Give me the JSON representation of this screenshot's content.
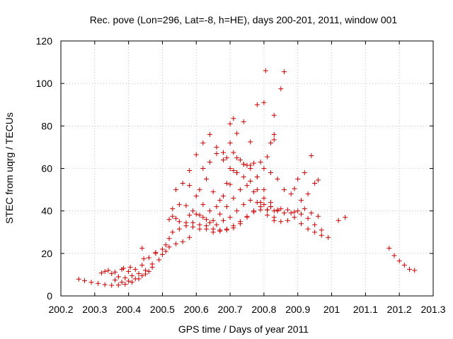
{
  "chart_data": {
    "type": "scatter",
    "title": "Rec. pove (Lon=296, Lat=-8, h=HE), days 200-201, 2011, window 001",
    "xlabel": "GPS time / Days of year 2011",
    "ylabel": "STEC from uqrg / TECUs",
    "xlim": [
      200.2,
      201.3
    ],
    "ylim": [
      0,
      120
    ],
    "x_ticks": [
      200.2,
      200.3,
      200.4,
      200.5,
      200.6,
      200.7,
      200.8,
      200.9,
      201,
      201.1,
      201.2,
      201.3
    ],
    "x_tick_labels": [
      "200.2",
      "200.3",
      "200.4",
      "200.5",
      "200.6",
      "200.7",
      "200.8",
      "200.9",
      "201",
      "201.1",
      "201.2",
      "201.3"
    ],
    "y_ticks": [
      0,
      20,
      40,
      60,
      80,
      100,
      120
    ],
    "y_tick_labels": [
      "0",
      "20",
      "40",
      "60",
      "80",
      "100",
      "120"
    ],
    "grid": true,
    "marker": "+",
    "color": "#cc0000",
    "series": [
      {
        "points": [
          [
            200.253,
            7.9
          ],
          [
            200.27,
            7.2
          ],
          [
            200.29,
            6.4
          ],
          [
            200.31,
            5.9
          ],
          [
            200.33,
            5.3
          ],
          [
            200.35,
            5.0
          ],
          [
            200.37,
            5.1
          ],
          [
            200.39,
            5.5
          ],
          [
            200.41,
            6.5
          ],
          [
            200.43,
            8.0
          ],
          [
            200.45,
            10.3
          ],
          [
            200.47,
            13.5
          ],
          [
            200.32,
            10.8
          ],
          [
            200.34,
            12.0
          ],
          [
            200.36,
            11.2
          ],
          [
            200.38,
            12.5
          ],
          [
            200.4,
            11.5
          ],
          [
            200.42,
            12.5
          ],
          [
            200.44,
            14.5
          ],
          [
            200.33,
            11.5
          ],
          [
            200.35,
            10.5
          ],
          [
            200.37,
            9.0
          ],
          [
            200.39,
            8.5
          ],
          [
            200.41,
            9.5
          ],
          [
            200.43,
            10.5
          ],
          [
            200.45,
            12.0
          ],
          [
            200.36,
            7.5
          ],
          [
            200.38,
            6.5
          ],
          [
            200.4,
            7.0
          ],
          [
            200.42,
            8.0
          ],
          [
            200.44,
            9.5
          ],
          [
            200.46,
            11.5
          ],
          [
            200.385,
            13.0
          ],
          [
            200.405,
            13.5
          ],
          [
            200.445,
            17.5
          ],
          [
            200.44,
            22.5
          ],
          [
            200.46,
            18.0
          ],
          [
            200.48,
            20.0
          ],
          [
            200.47,
            15.0
          ],
          [
            200.49,
            17.0
          ],
          [
            200.5,
            19.5
          ],
          [
            200.51,
            21.0
          ],
          [
            200.52,
            23.0
          ],
          [
            200.54,
            24.5
          ],
          [
            200.56,
            25.5
          ],
          [
            200.58,
            27.5
          ],
          [
            200.48,
            20.5
          ],
          [
            200.5,
            22.0
          ],
          [
            200.51,
            24.0
          ],
          [
            200.52,
            27.0
          ],
          [
            200.52,
            36.0
          ],
          [
            200.53,
            37.5
          ],
          [
            200.54,
            36.5
          ],
          [
            200.55,
            35.0
          ],
          [
            200.57,
            34.5
          ],
          [
            200.59,
            34.5
          ],
          [
            200.61,
            33.5
          ],
          [
            200.63,
            33.0
          ],
          [
            200.65,
            31.5
          ],
          [
            200.67,
            31.0
          ],
          [
            200.69,
            31.5
          ],
          [
            200.71,
            33.0
          ],
          [
            200.73,
            35.0
          ],
          [
            200.75,
            37.5
          ],
          [
            200.77,
            39.5
          ],
          [
            200.79,
            40.5
          ],
          [
            200.81,
            40.5
          ],
          [
            200.83,
            40.0
          ],
          [
            200.85,
            41.0
          ],
          [
            200.87,
            40.5
          ],
          [
            200.89,
            39.5
          ],
          [
            200.91,
            38.5
          ],
          [
            200.93,
            36.5
          ],
          [
            200.95,
            33.5
          ],
          [
            200.97,
            31.0
          ],
          [
            200.53,
            30.0
          ],
          [
            200.55,
            31.5
          ],
          [
            200.57,
            33.0
          ],
          [
            200.59,
            32.5
          ],
          [
            200.61,
            31.5
          ],
          [
            200.63,
            31.5
          ],
          [
            200.65,
            30.0
          ],
          [
            200.67,
            30.5
          ],
          [
            200.69,
            31.0
          ],
          [
            200.71,
            32.0
          ],
          [
            200.73,
            34.0
          ],
          [
            200.75,
            37.0
          ],
          [
            200.77,
            40.0
          ],
          [
            200.79,
            42.0
          ],
          [
            200.81,
            40.5
          ],
          [
            200.83,
            37.0
          ],
          [
            200.85,
            35.0
          ],
          [
            200.87,
            35.5
          ],
          [
            200.89,
            37.0
          ],
          [
            200.91,
            34.0
          ],
          [
            200.93,
            31.5
          ],
          [
            200.95,
            30.0
          ],
          [
            200.97,
            28.5
          ],
          [
            200.99,
            27.5
          ],
          [
            200.53,
            41.0
          ],
          [
            200.55,
            43.0
          ],
          [
            200.57,
            42.5
          ],
          [
            200.59,
            40.0
          ],
          [
            200.61,
            38.0
          ],
          [
            200.63,
            36.0
          ],
          [
            200.65,
            35.5
          ],
          [
            200.67,
            38.5
          ],
          [
            200.69,
            42.0
          ],
          [
            200.71,
            46.0
          ],
          [
            200.73,
            50.0
          ],
          [
            200.75,
            52.0
          ],
          [
            200.77,
            49.0
          ],
          [
            200.79,
            44.0
          ],
          [
            200.81,
            38.0
          ],
          [
            200.83,
            35.5
          ],
          [
            200.54,
            50.0
          ],
          [
            200.56,
            53.0
          ],
          [
            200.58,
            52.0
          ],
          [
            200.6,
            47.0
          ],
          [
            200.62,
            43.0
          ],
          [
            200.64,
            40.0
          ],
          [
            200.66,
            42.0
          ],
          [
            200.68,
            47.0
          ],
          [
            200.7,
            52.5
          ],
          [
            200.72,
            58.0
          ],
          [
            200.74,
            62.0
          ],
          [
            200.76,
            61.5
          ],
          [
            200.78,
            56.0
          ],
          [
            200.8,
            50.0
          ],
          [
            200.82,
            44.0
          ],
          [
            200.84,
            40.0
          ],
          [
            200.58,
            59.0
          ],
          [
            200.6,
            66.5
          ],
          [
            200.62,
            72.0
          ],
          [
            200.64,
            76.0
          ],
          [
            200.66,
            70.0
          ],
          [
            200.68,
            64.0
          ],
          [
            200.7,
            60.0
          ],
          [
            200.72,
            58.0
          ],
          [
            200.74,
            56.0
          ],
          [
            200.76,
            54.0
          ],
          [
            200.78,
            50.0
          ],
          [
            200.8,
            46.0
          ],
          [
            200.82,
            42.0
          ],
          [
            200.84,
            40.0
          ],
          [
            200.62,
            60.0
          ],
          [
            200.64,
            63.0
          ],
          [
            200.66,
            67.0
          ],
          [
            200.68,
            67.5
          ],
          [
            200.7,
            72.0
          ],
          [
            200.72,
            65.0
          ],
          [
            200.74,
            62.0
          ],
          [
            200.76,
            60.0
          ],
          [
            200.78,
            56.0
          ],
          [
            200.8,
            60.0
          ],
          [
            200.82,
            58.0
          ],
          [
            200.84,
            55.0
          ],
          [
            200.86,
            50.0
          ],
          [
            200.88,
            48.0
          ],
          [
            200.9,
            55.0
          ],
          [
            200.92,
            58.0
          ],
          [
            200.94,
            66.0
          ],
          [
            200.61,
            50.0
          ],
          [
            200.63,
            55.0
          ],
          [
            200.65,
            49.0
          ],
          [
            200.67,
            45.0
          ],
          [
            200.69,
            53.0
          ],
          [
            200.71,
            59.0
          ],
          [
            200.73,
            64.0
          ],
          [
            200.75,
            61.5
          ],
          [
            200.77,
            62.5
          ],
          [
            200.79,
            63.0
          ],
          [
            200.81,
            65.5
          ],
          [
            200.83,
            73.5
          ],
          [
            200.85,
            97.5
          ],
          [
            200.69,
            65.0
          ],
          [
            200.71,
            67.5
          ],
          [
            200.72,
            76.5
          ],
          [
            200.7,
            81.0
          ],
          [
            200.71,
            83.5
          ],
          [
            200.74,
            82.0
          ],
          [
            200.76,
            72.5
          ],
          [
            200.78,
            90.0
          ],
          [
            200.8,
            91.0
          ],
          [
            200.805,
            106.0
          ],
          [
            200.83,
            85.0
          ],
          [
            200.86,
            105.5
          ],
          [
            200.82,
            72.0
          ],
          [
            200.83,
            76.0
          ],
          [
            200.58,
            38.0
          ],
          [
            200.6,
            38.5
          ],
          [
            200.62,
            37.0
          ],
          [
            200.64,
            34.5
          ],
          [
            200.66,
            33.5
          ],
          [
            200.68,
            35.5
          ],
          [
            200.7,
            37.0
          ],
          [
            200.72,
            40.0
          ],
          [
            200.74,
            43.0
          ],
          [
            200.76,
            45.0
          ],
          [
            200.78,
            44.0
          ],
          [
            200.8,
            43.0
          ],
          [
            200.82,
            42.0
          ],
          [
            200.84,
            40.5
          ],
          [
            200.86,
            39.0
          ],
          [
            200.88,
            39.0
          ],
          [
            200.9,
            40.0
          ],
          [
            200.92,
            41.0
          ],
          [
            200.94,
            39.0
          ],
          [
            200.96,
            37.5
          ],
          [
            200.89,
            50.5
          ],
          [
            200.91,
            45.0
          ],
          [
            200.93,
            48.0
          ],
          [
            200.95,
            53.0
          ],
          [
            200.96,
            54.5
          ],
          [
            201.02,
            35.5
          ],
          [
            201.04,
            37.0
          ],
          [
            201.17,
            22.5
          ],
          [
            201.185,
            19.0
          ],
          [
            201.2,
            16.5
          ],
          [
            201.215,
            14.5
          ],
          [
            201.23,
            12.5
          ],
          [
            201.245,
            12.0
          ]
        ]
      }
    ]
  }
}
